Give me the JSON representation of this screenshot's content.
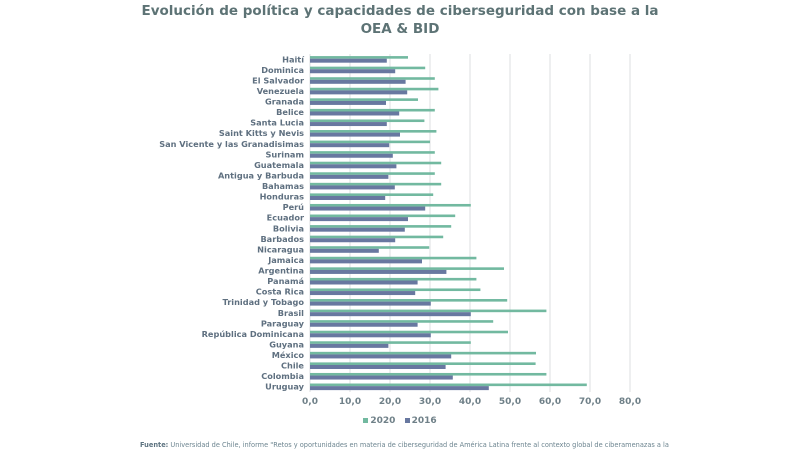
{
  "chart_data": {
    "type": "bar",
    "orientation": "horizontal",
    "title": "Evolución de política y capacidades de ciberseguridad con base a la OEA & BID",
    "title_lines": [
      "Evolución de política y capacidades de ciberseguridad con base a la",
      "OEA & BID"
    ],
    "categories": [
      "Haití",
      "Dominica",
      "El Salvador",
      "Venezuela",
      "Granada",
      "Belice",
      "Santa Lucia",
      "Saint Kitts y Nevis",
      "San Vicente y las Granadisimas",
      "Surinam",
      "Guatemala",
      "Antigua y Barbuda",
      "Bahamas",
      "Honduras",
      "Perú",
      "Ecuador",
      "Bolivia",
      "Barbados",
      "Nicaragua",
      "Jamaica",
      "Argentina",
      "Panamá",
      "Costa Rica",
      "Trinidad y Tobago",
      "Brasil",
      "Paraguay",
      "República Dominicana",
      "Guyana",
      "México",
      "Chile",
      "Colombia",
      "Uruguay"
    ],
    "series": [
      {
        "name": "2020",
        "color": "#72b9a0",
        "values": [
          24.5,
          28.8,
          31.2,
          32.1,
          27.0,
          31.2,
          28.6,
          31.6,
          30.0,
          31.2,
          32.8,
          31.2,
          32.8,
          30.8,
          40.2,
          36.3,
          35.3,
          33.3,
          29.8,
          41.6,
          48.5,
          41.6,
          42.6,
          49.3,
          59.1,
          45.8,
          49.5,
          40.2,
          56.5,
          56.4,
          59.1,
          69.2
        ]
      },
      {
        "name": "2016",
        "color": "#6878a0",
        "values": [
          19.2,
          21.3,
          23.9,
          24.3,
          19.0,
          22.3,
          19.2,
          22.5,
          19.8,
          20.7,
          21.6,
          19.6,
          21.2,
          18.8,
          28.8,
          24.5,
          23.7,
          21.3,
          17.2,
          28.0,
          34.1,
          26.9,
          26.3,
          30.2,
          40.2,
          26.9,
          30.2,
          19.6,
          35.3,
          33.9,
          35.7,
          44.7
        ]
      }
    ],
    "xlim": [
      0,
      80
    ],
    "x_ticks": [
      "0,0",
      "10,0",
      "20,0",
      "30,0",
      "40,0",
      "50,0",
      "60,0",
      "70,0",
      "80,0"
    ],
    "grid": true,
    "legend_position": "bottom",
    "xlabel": "",
    "ylabel": ""
  },
  "footnote": {
    "label": "Fuente:",
    "text": " Universidad de Chile, informe \"Retos y oportunidades en materia de ciberseguridad de América Latina frente al contexto global de ciberamenazas a la"
  }
}
